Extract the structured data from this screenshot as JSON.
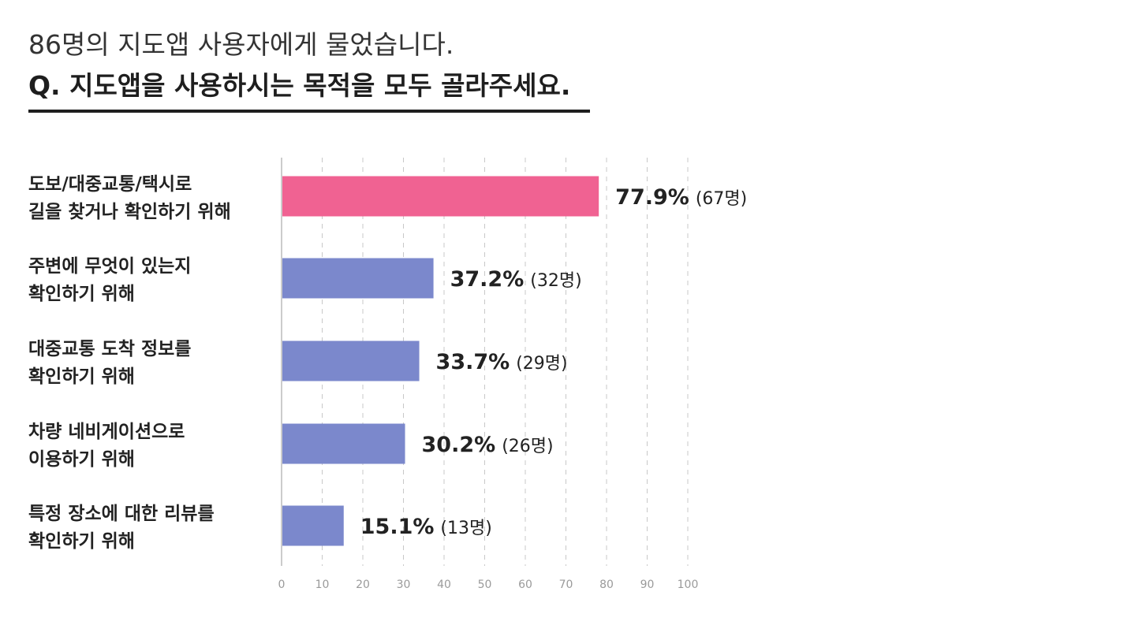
{
  "header": {
    "subtitle": "86명의 지도앱 사용자에게 물었습니다.",
    "title": "Q. 지도앱을 사용하시는 목적을 모두 골라주세요."
  },
  "chart_data": {
    "type": "bar",
    "orientation": "horizontal",
    "title": "Q. 지도앱을 사용하시는 목적을 모두 골라주세요.",
    "subtitle": "86명의 지도앱 사용자에게 물었습니다.",
    "xlabel": "",
    "ylabel": "",
    "xlim": [
      0,
      100
    ],
    "x_ticks": [
      0,
      10,
      20,
      30,
      40,
      50,
      60,
      70,
      80,
      90,
      100
    ],
    "grid": "vertical dashed",
    "legend": "none",
    "colors": {
      "highlight": "#f06292",
      "default": "#7b88cc",
      "grid": "#c8c8c8",
      "axis": "#cccccc"
    },
    "categories": [
      [
        "도보/대중교통/택시로",
        "길을 찾거나 확인하기 위해"
      ],
      [
        "주변에 무엇이 있는지",
        "확인하기 위해"
      ],
      [
        "대중교통 도착 정보를",
        "확인하기 위해"
      ],
      [
        "차량 네비게이션으로",
        "이용하기 위해"
      ],
      [
        "특정 장소에 대한 리뷰를",
        "확인하기 위해"
      ]
    ],
    "values": [
      77.9,
      37.2,
      33.7,
      30.2,
      15.1
    ],
    "counts": [
      67,
      32,
      29,
      26,
      13
    ],
    "value_labels": [
      "77.9%",
      "37.2%",
      "33.7%",
      "30.2%",
      "15.1%"
    ],
    "count_labels": [
      "(67명)",
      "(32명)",
      "(29명)",
      "(26명)",
      "(13명)"
    ],
    "highlight_index": 0
  }
}
